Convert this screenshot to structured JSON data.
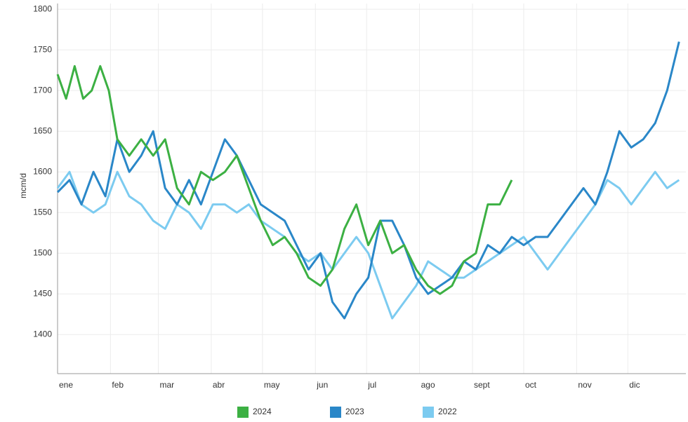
{
  "chart_data": {
    "type": "line",
    "y_label": "mcm/d",
    "xlim": [
      0,
      368
    ],
    "xticks": [
      {
        "value": 0,
        "label": "ene"
      },
      {
        "value": 31,
        "label": "feb"
      },
      {
        "value": 59,
        "label": "mar"
      },
      {
        "value": 90,
        "label": "abr"
      },
      {
        "value": 120,
        "label": "may"
      },
      {
        "value": 151,
        "label": "jun"
      },
      {
        "value": 181,
        "label": "jul"
      },
      {
        "value": 212,
        "label": "ago"
      },
      {
        "value": 243,
        "label": "sept"
      },
      {
        "value": 273,
        "label": "oct"
      },
      {
        "value": 304,
        "label": "nov"
      },
      {
        "value": 334,
        "label": "dic"
      }
    ],
    "ylim": [
      1352,
      1807
    ],
    "yticks": [
      1400,
      1450,
      1500,
      1550,
      1600,
      1650,
      1700,
      1750,
      1800
    ],
    "grid": true,
    "legend": "bottom",
    "series": [
      {
        "name": "2024",
        "color": "#3cb043",
        "x": [
          0,
          5,
          10,
          15,
          20,
          25,
          30,
          35,
          42,
          49,
          56,
          63,
          70,
          77,
          84,
          91,
          98,
          105,
          112,
          119,
          126,
          133,
          140,
          147,
          154,
          161,
          168,
          175,
          182,
          189,
          196,
          203,
          210,
          217,
          224,
          231,
          238,
          245,
          252,
          259,
          266
        ],
        "values": [
          1720,
          1690,
          1730,
          1690,
          1700,
          1730,
          1700,
          1640,
          1620,
          1640,
          1620,
          1640,
          1580,
          1560,
          1600,
          1590,
          1600,
          1620,
          1580,
          1540,
          1510,
          1520,
          1500,
          1470,
          1460,
          1480,
          1530,
          1560,
          1510,
          1540,
          1500,
          1510,
          1480,
          1460,
          1450,
          1460,
          1490,
          1500,
          1560,
          1560,
          1590
        ]
      },
      {
        "name": "2023",
        "color": "#2a87c8",
        "x": [
          0,
          7,
          14,
          21,
          28,
          35,
          42,
          49,
          56,
          63,
          70,
          77,
          84,
          91,
          98,
          105,
          112,
          119,
          126,
          133,
          140,
          147,
          154,
          161,
          168,
          175,
          182,
          189,
          196,
          203,
          210,
          217,
          224,
          231,
          238,
          245,
          252,
          259,
          266,
          273,
          280,
          287,
          294,
          301,
          308,
          315,
          322,
          329,
          336,
          343,
          350,
          357,
          364
        ],
        "values": [
          1575,
          1590,
          1560,
          1600,
          1570,
          1640,
          1600,
          1620,
          1650,
          1580,
          1560,
          1590,
          1560,
          1600,
          1640,
          1620,
          1590,
          1560,
          1550,
          1540,
          1510,
          1480,
          1500,
          1440,
          1420,
          1450,
          1470,
          1540,
          1540,
          1510,
          1470,
          1450,
          1460,
          1470,
          1490,
          1480,
          1510,
          1500,
          1520,
          1510,
          1520,
          1520,
          1540,
          1560,
          1580,
          1560,
          1600,
          1650,
          1630,
          1640,
          1660,
          1700,
          1760
        ]
      },
      {
        "name": "2022",
        "color": "#7ccbf0",
        "x": [
          0,
          7,
          14,
          21,
          28,
          35,
          42,
          49,
          56,
          63,
          70,
          77,
          84,
          91,
          98,
          105,
          112,
          119,
          126,
          133,
          140,
          147,
          154,
          161,
          168,
          175,
          182,
          189,
          196,
          203,
          210,
          217,
          224,
          231,
          238,
          245,
          252,
          259,
          266,
          273,
          280,
          287,
          294,
          301,
          308,
          315,
          322,
          329,
          336,
          343,
          350,
          357,
          364
        ],
        "values": [
          1580,
          1600,
          1560,
          1550,
          1560,
          1600,
          1570,
          1560,
          1540,
          1530,
          1560,
          1550,
          1530,
          1560,
          1560,
          1550,
          1560,
          1540,
          1530,
          1520,
          1500,
          1490,
          1500,
          1480,
          1500,
          1520,
          1500,
          1460,
          1420,
          1440,
          1460,
          1490,
          1480,
          1470,
          1470,
          1480,
          1490,
          1500,
          1510,
          1520,
          1500,
          1480,
          1500,
          1520,
          1540,
          1560,
          1590,
          1580,
          1560,
          1580,
          1600,
          1580,
          1590
        ]
      }
    ]
  }
}
